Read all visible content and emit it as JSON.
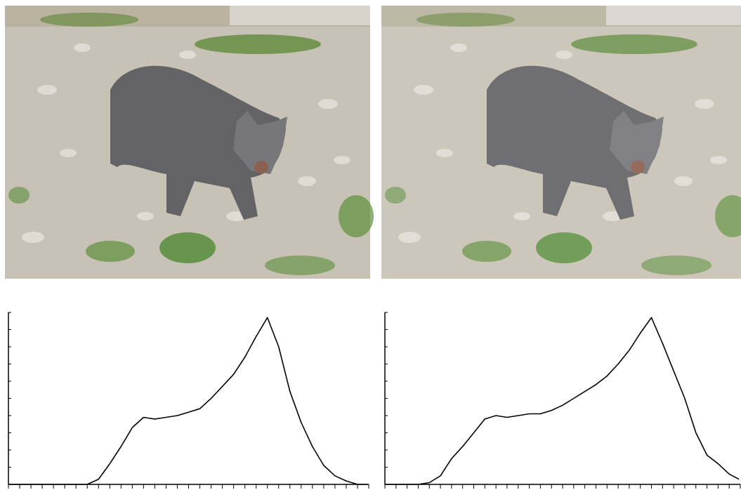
{
  "chart_data": [
    {
      "type": "line",
      "color": "#000000",
      "x": [
        0,
        8,
        16,
        24,
        32,
        40,
        48,
        56,
        64,
        72,
        80,
        88,
        96,
        104,
        112,
        120,
        128,
        136,
        144,
        152,
        160,
        168,
        176,
        184,
        192,
        200,
        208,
        216,
        224,
        232,
        240,
        248,
        255
      ],
      "values": [
        0,
        0,
        0,
        0,
        0,
        0,
        0,
        0,
        3,
        12,
        22,
        33,
        39,
        38,
        39,
        40,
        42,
        44,
        50,
        57,
        64,
        74,
        86,
        97,
        80,
        54,
        36,
        22,
        11,
        5,
        2,
        0,
        0
      ],
      "xlim": [
        0,
        256
      ],
      "ylim": [
        0,
        100
      ],
      "xticks": [
        0,
        8,
        16,
        24,
        32,
        40,
        48,
        56,
        64,
        72,
        80,
        88,
        96,
        104,
        112,
        120,
        128,
        136,
        144,
        152,
        160,
        168,
        176,
        184,
        192,
        200,
        208,
        216,
        224,
        232,
        240,
        248,
        256
      ],
      "yticks": [
        0,
        10,
        20,
        30,
        40,
        50,
        60,
        70,
        80,
        90,
        100
      ]
    },
    {
      "type": "line",
      "color": "#000000",
      "x": [
        0,
        8,
        16,
        24,
        32,
        40,
        48,
        56,
        64,
        72,
        80,
        88,
        96,
        104,
        112,
        120,
        128,
        136,
        144,
        152,
        160,
        168,
        176,
        184,
        192,
        200,
        208,
        216,
        224,
        232,
        240,
        248,
        255
      ],
      "values": [
        0,
        0,
        0,
        0,
        1,
        5,
        15,
        22,
        30,
        38,
        40,
        39,
        40,
        41,
        41,
        43,
        46,
        50,
        54,
        58,
        63,
        70,
        78,
        88,
        97,
        82,
        66,
        50,
        30,
        17,
        12,
        6,
        3
      ],
      "xlim": [
        0,
        256
      ],
      "ylim": [
        0,
        100
      ],
      "xticks": [
        0,
        8,
        16,
        24,
        32,
        40,
        48,
        56,
        64,
        72,
        80,
        88,
        96,
        104,
        112,
        120,
        128,
        136,
        144,
        152,
        160,
        168,
        176,
        184,
        192,
        200,
        208,
        216,
        224,
        232,
        240,
        248,
        256
      ],
      "yticks": [
        0,
        10,
        20,
        30,
        40,
        50,
        60,
        70,
        80,
        90,
        100
      ]
    }
  ]
}
